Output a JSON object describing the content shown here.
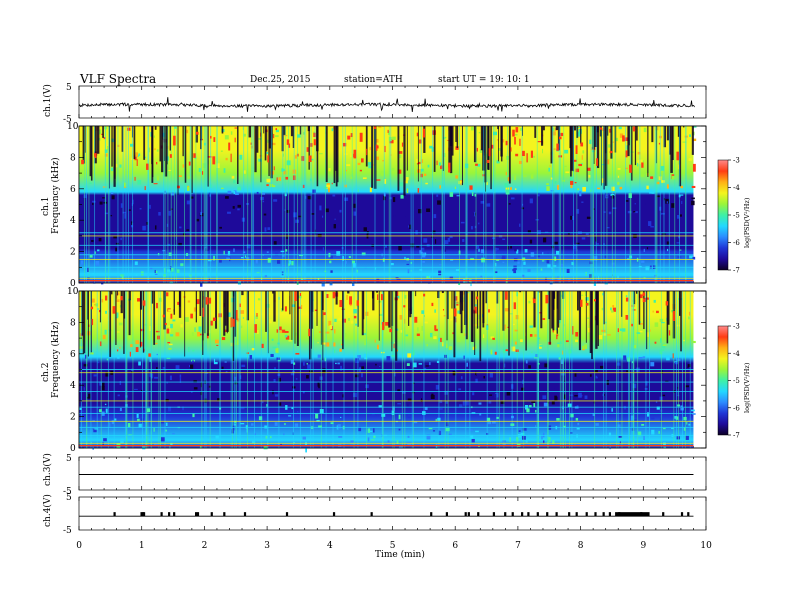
{
  "header": {
    "title": "VLF  Spectra",
    "date": "Dec.25, 2015",
    "station": "station=ATH",
    "start": "start  UT  =    19: 10: 1"
  },
  "colors": {
    "colormap": [
      "#0d0026",
      "#1e0a9a",
      "#1f36d6",
      "#2c8bff",
      "#22d8ff",
      "#3ef0a6",
      "#9af53a",
      "#f4f41e",
      "#ffb014",
      "#ff3c14",
      "#ff8a8a"
    ],
    "trace": "#000000",
    "axis": "#000000"
  },
  "chart_data": [
    {
      "type": "line",
      "name": "ch1-voltage",
      "ylabel": "ch.1(V)",
      "yticks": [
        "5",
        "-5"
      ],
      "ylim": [
        -5,
        5
      ],
      "xlim": [
        0,
        10
      ],
      "description_values": {
        "baseline_V": -1.0,
        "noise_amplitude_V": 0.6
      }
    },
    {
      "type": "heatmap",
      "name": "ch1-spectrogram",
      "ylabel_channel": "ch.1",
      "ylabel": "Frequency  (kHz)",
      "yticks": [
        "0",
        "2",
        "4",
        "6",
        "8",
        "10"
      ],
      "ylim": [
        0,
        10
      ],
      "xlim": [
        0,
        9.8
      ],
      "colorbar": {
        "label": "log(PSD(V²/Hz)",
        "ticks": [
          "-3",
          "-4",
          "-5",
          "-6",
          "-7"
        ],
        "range": [
          -7,
          -3
        ]
      },
      "bands_kHz": [
        0.3,
        0.6,
        1.0,
        1.5,
        1.8,
        2.4,
        3.0,
        3.2
      ]
    },
    {
      "type": "heatmap",
      "name": "ch2-spectrogram",
      "ylabel_channel": "ch.2",
      "ylabel": "Frequency  (kHz)",
      "yticks": [
        "0",
        "2",
        "4",
        "6",
        "8",
        "10"
      ],
      "ylim": [
        0,
        10
      ],
      "xlim": [
        0,
        9.8
      ],
      "colorbar": {
        "label": "log(PSD(V²/Hz)",
        "ticks": [
          "-3",
          "-4",
          "-5",
          "-6",
          "-7"
        ],
        "range": [
          -7,
          -3
        ]
      },
      "bands_kHz": [
        0.3,
        0.8,
        1.3,
        1.7,
        2.2,
        2.6,
        3.0,
        3.6,
        4.2,
        4.8,
        5.0
      ]
    },
    {
      "type": "line",
      "name": "ch3-voltage",
      "ylabel": "ch.3(V)",
      "yticks": [
        "5",
        "-5"
      ],
      "ylim": [
        -5,
        5
      ],
      "xlim": [
        0,
        10
      ]
    },
    {
      "type": "line",
      "name": "ch4-voltage",
      "ylabel": "ch.4(V)",
      "yticks": [
        "5",
        "-5"
      ],
      "ylim": [
        -5,
        5
      ],
      "xlim": [
        0,
        10
      ],
      "pulse_times_min": [
        0.55,
        0.98,
        1.0,
        1.02,
        1.3,
        1.42,
        1.5,
        1.85,
        1.88,
        2.1,
        2.3,
        2.63,
        3.3,
        4.05,
        4.65,
        5.6,
        5.85,
        6.15,
        6.2,
        6.35,
        6.6,
        6.78,
        6.9,
        7.05,
        7.15,
        7.3,
        7.45,
        7.6,
        7.8,
        7.92,
        8.08,
        8.22,
        8.35,
        8.45,
        8.6,
        8.95,
        9.3,
        9.6,
        9.7
      ],
      "dense_segment_min": [
        8.55,
        9.1
      ]
    }
  ],
  "xaxis": {
    "label": "Time  (min)",
    "ticks": [
      "0",
      "1",
      "2",
      "3",
      "4",
      "5",
      "6",
      "7",
      "8",
      "9",
      "10"
    ],
    "range": [
      0,
      10
    ]
  }
}
